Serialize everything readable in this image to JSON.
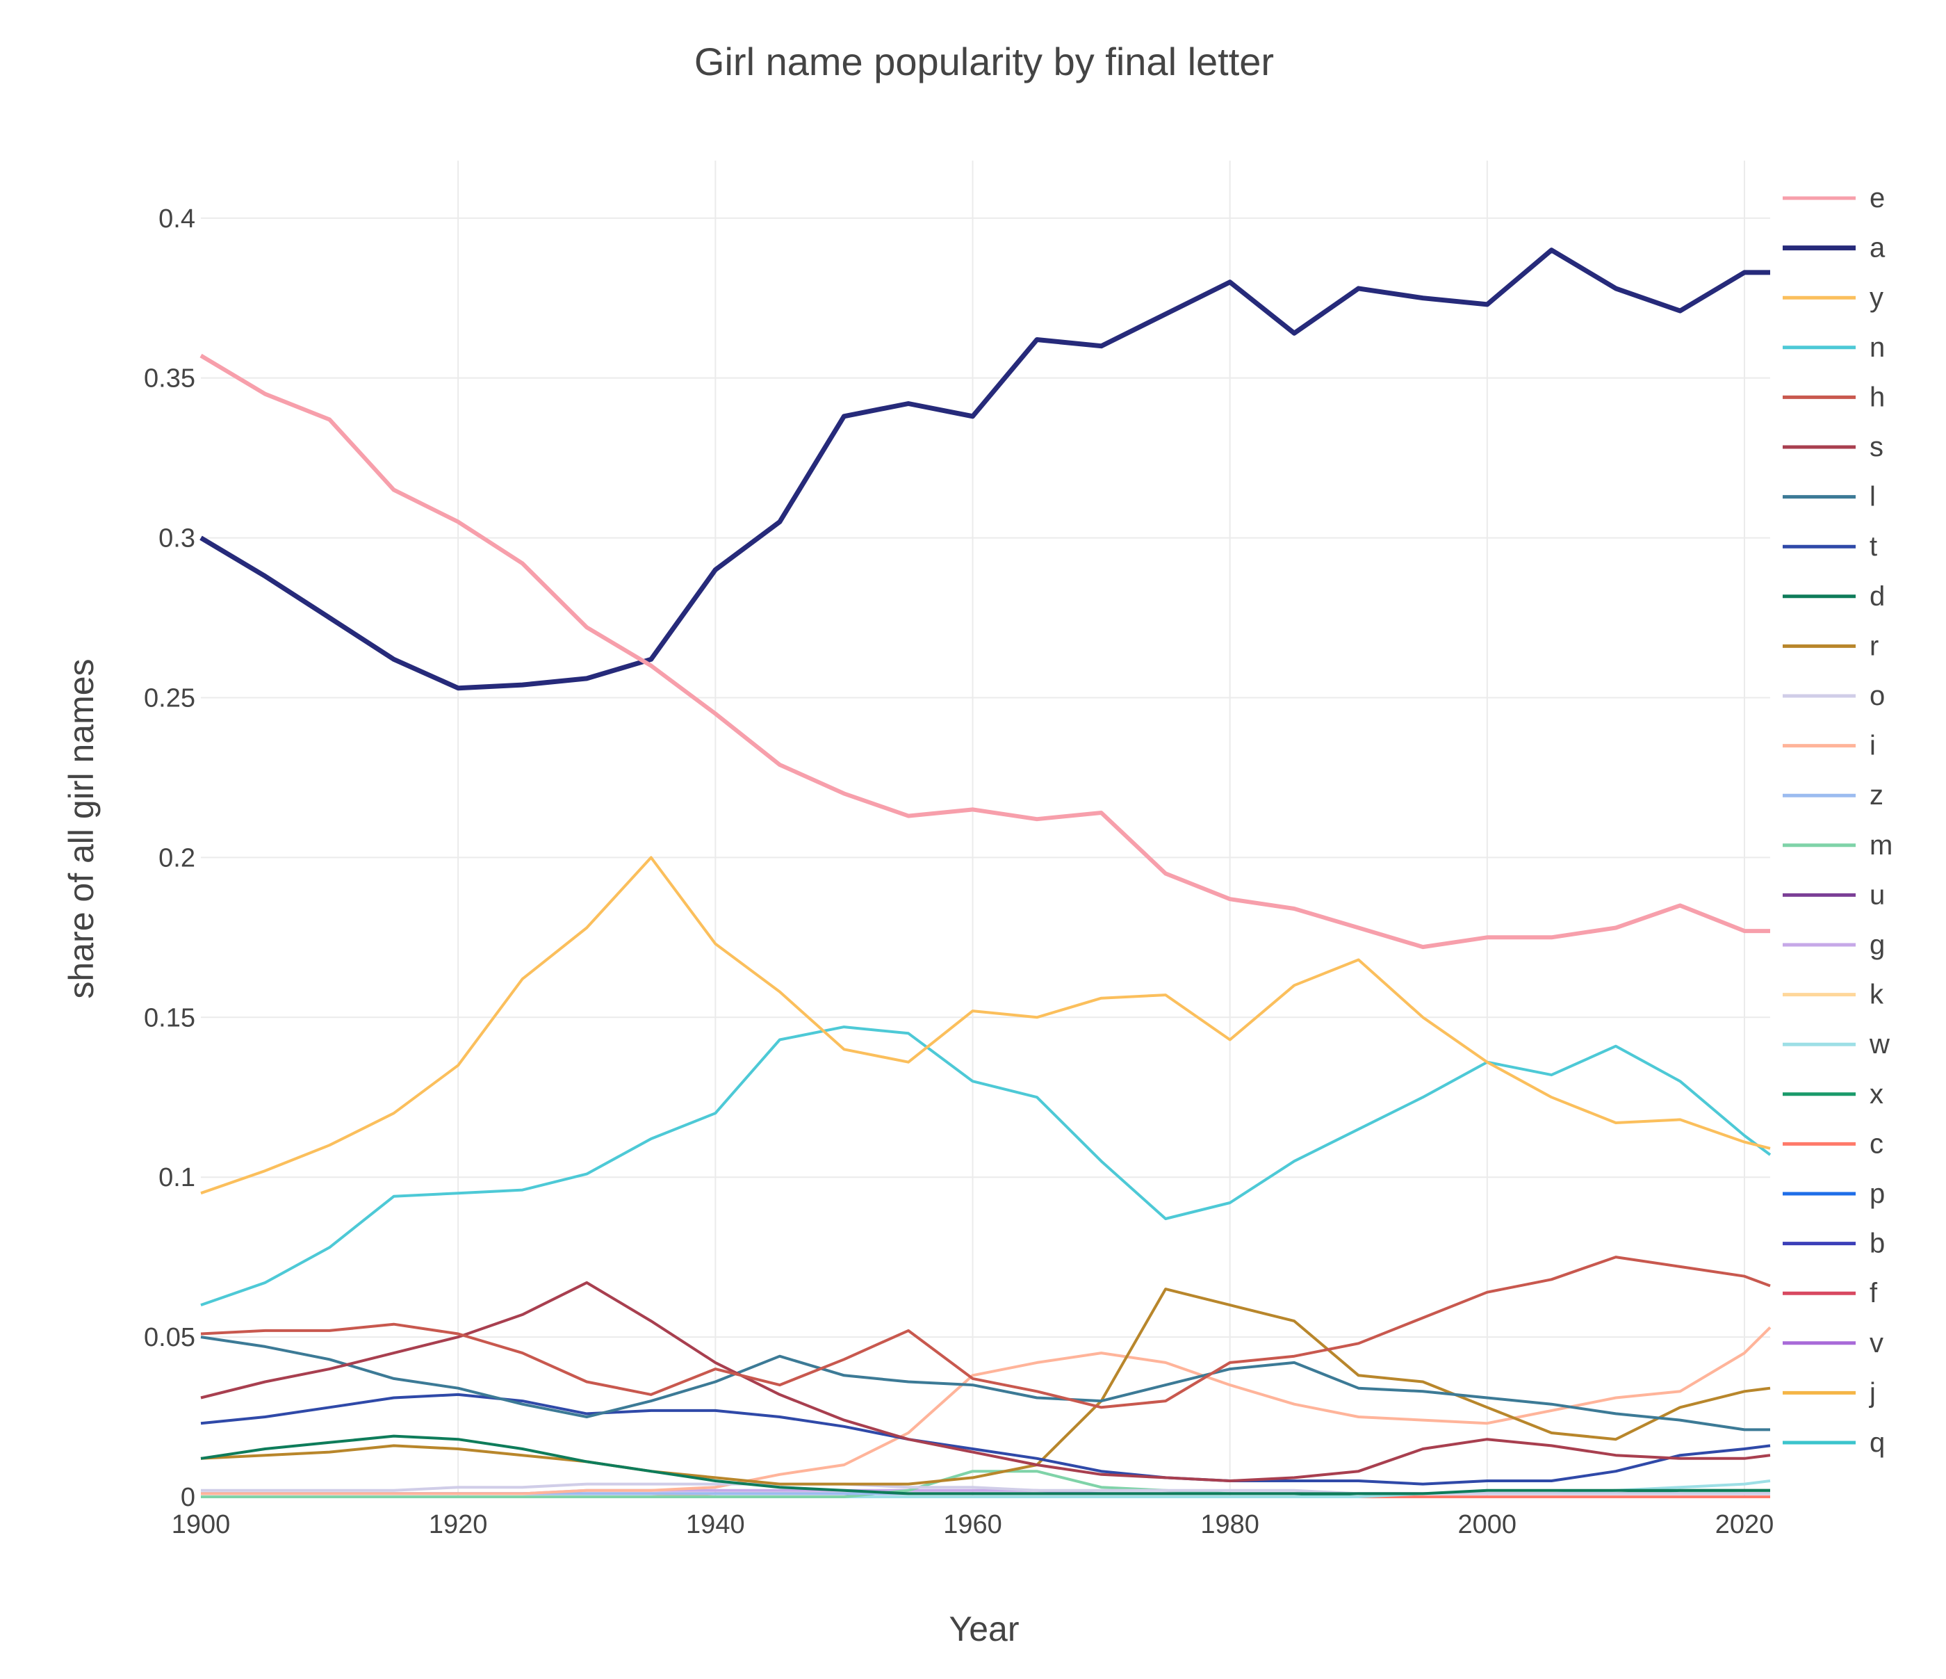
{
  "chart_data": {
    "type": "line",
    "title": "Girl name popularity by final letter",
    "xlabel": "Year",
    "ylabel": "share of all girl names",
    "xlim": [
      1900,
      2022
    ],
    "ylim": [
      0,
      0.418
    ],
    "xticks": [
      1900,
      1920,
      1940,
      1960,
      1980,
      2000,
      2020
    ],
    "yticks": [
      0,
      0.05,
      0.1,
      0.15,
      0.2,
      0.25,
      0.3,
      0.35,
      0.4
    ],
    "ytick_labels": [
      "0",
      "0.05",
      "0.1",
      "0.15",
      "0.2",
      "0.25",
      "0.3",
      "0.35",
      "0.4"
    ],
    "grid": true,
    "legend_placement": "right",
    "x": [
      1900,
      1905,
      1910,
      1915,
      1920,
      1925,
      1930,
      1935,
      1940,
      1945,
      1950,
      1955,
      1960,
      1965,
      1970,
      1975,
      1980,
      1985,
      1990,
      1995,
      2000,
      2005,
      2010,
      2015,
      2020,
      2022
    ],
    "series": [
      {
        "name": "e",
        "color": "#f79fab",
        "values": [
          0.357,
          0.345,
          0.337,
          0.315,
          0.305,
          0.292,
          0.272,
          0.26,
          0.245,
          0.229,
          0.22,
          0.213,
          0.215,
          0.212,
          0.214,
          0.195,
          0.187,
          0.184,
          0.178,
          0.172,
          0.175,
          0.175,
          0.178,
          0.185,
          0.177,
          0.177
        ]
      },
      {
        "name": "a",
        "color": "#262a7a",
        "values": [
          0.3,
          0.288,
          0.275,
          0.262,
          0.253,
          0.254,
          0.256,
          0.262,
          0.29,
          0.305,
          0.338,
          0.342,
          0.338,
          0.362,
          0.36,
          0.37,
          0.38,
          0.364,
          0.378,
          0.375,
          0.373,
          0.39,
          0.378,
          0.371,
          0.383,
          0.383
        ]
      },
      {
        "name": "y",
        "color": "#fbbf5c",
        "values": [
          0.095,
          0.102,
          0.11,
          0.12,
          0.135,
          0.162,
          0.178,
          0.2,
          0.173,
          0.158,
          0.14,
          0.136,
          0.152,
          0.15,
          0.156,
          0.157,
          0.143,
          0.16,
          0.168,
          0.15,
          0.136,
          0.125,
          0.117,
          0.118,
          0.111,
          0.109
        ]
      },
      {
        "name": "n",
        "color": "#4dc9d6",
        "values": [
          0.06,
          0.067,
          0.078,
          0.094,
          0.095,
          0.096,
          0.101,
          0.112,
          0.12,
          0.143,
          0.147,
          0.145,
          0.13,
          0.125,
          0.105,
          0.087,
          0.092,
          0.105,
          0.115,
          0.125,
          0.136,
          0.132,
          0.141,
          0.13,
          0.113,
          0.107
        ]
      },
      {
        "name": "h",
        "color": "#c8584e",
        "values": [
          0.051,
          0.052,
          0.052,
          0.054,
          0.051,
          0.045,
          0.036,
          0.032,
          0.04,
          0.035,
          0.043,
          0.052,
          0.037,
          0.033,
          0.028,
          0.03,
          0.042,
          0.044,
          0.048,
          0.056,
          0.064,
          0.068,
          0.075,
          0.072,
          0.069,
          0.066
        ]
      },
      {
        "name": "s",
        "color": "#a83f4f",
        "values": [
          0.031,
          0.036,
          0.04,
          0.045,
          0.05,
          0.057,
          0.067,
          0.055,
          0.042,
          0.032,
          0.024,
          0.018,
          0.014,
          0.01,
          0.007,
          0.006,
          0.005,
          0.006,
          0.008,
          0.015,
          0.018,
          0.016,
          0.013,
          0.012,
          0.012,
          0.013
        ]
      },
      {
        "name": "l",
        "color": "#3c7a96",
        "values": [
          0.05,
          0.047,
          0.043,
          0.037,
          0.034,
          0.029,
          0.025,
          0.03,
          0.036,
          0.044,
          0.038,
          0.036,
          0.035,
          0.031,
          0.03,
          0.035,
          0.04,
          0.042,
          0.034,
          0.033,
          0.031,
          0.029,
          0.026,
          0.024,
          0.021,
          0.021
        ]
      },
      {
        "name": "t",
        "color": "#2f49a8",
        "values": [
          0.023,
          0.025,
          0.028,
          0.031,
          0.032,
          0.03,
          0.026,
          0.027,
          0.027,
          0.025,
          0.022,
          0.018,
          0.015,
          0.012,
          0.008,
          0.006,
          0.005,
          0.005,
          0.005,
          0.004,
          0.005,
          0.005,
          0.008,
          0.013,
          0.015,
          0.016
        ]
      },
      {
        "name": "d",
        "color": "#0e7c5a",
        "values": [
          0.012,
          0.015,
          0.017,
          0.019,
          0.018,
          0.015,
          0.011,
          0.008,
          0.005,
          0.003,
          0.002,
          0.001,
          0.001,
          0.001,
          0.001,
          0.001,
          0.001,
          0.001,
          0.001,
          0.001,
          0.002,
          0.002,
          0.002,
          0.002,
          0.002,
          0.002
        ]
      },
      {
        "name": "r",
        "color": "#b8862b",
        "values": [
          0.012,
          0.013,
          0.014,
          0.016,
          0.015,
          0.013,
          0.011,
          0.008,
          0.006,
          0.004,
          0.004,
          0.004,
          0.006,
          0.01,
          0.03,
          0.065,
          0.06,
          0.055,
          0.038,
          0.036,
          0.028,
          0.02,
          0.018,
          0.028,
          0.033,
          0.034
        ]
      },
      {
        "name": "o",
        "color": "#d0cde8",
        "values": [
          0.002,
          0.002,
          0.002,
          0.002,
          0.003,
          0.003,
          0.004,
          0.004,
          0.004,
          0.004,
          0.004,
          0.003,
          0.003,
          0.002,
          0.002,
          0.002,
          0.002,
          0.002,
          0.001,
          0.001,
          0.001,
          0.001,
          0.001,
          0.001,
          0.001,
          0.001
        ]
      },
      {
        "name": "i",
        "color": "#ffb49a",
        "values": [
          0.001,
          0.001,
          0.001,
          0.001,
          0.001,
          0.001,
          0.002,
          0.002,
          0.003,
          0.007,
          0.01,
          0.02,
          0.038,
          0.042,
          0.045,
          0.042,
          0.035,
          0.029,
          0.025,
          0.024,
          0.023,
          0.027,
          0.031,
          0.033,
          0.045,
          0.053
        ]
      },
      {
        "name": "z",
        "color": "#9bbcf0",
        "values": [
          0.001,
          0.001,
          0.001,
          0.001,
          0.001,
          0.001,
          0.001,
          0.001,
          0.001,
          0.001,
          0.001,
          0.001,
          0.001,
          0.001,
          0.001,
          0.001,
          0.001,
          0.001,
          0.001,
          0.001,
          0.001,
          0.001,
          0.001,
          0.001,
          0.001,
          0.001
        ]
      },
      {
        "name": "m",
        "color": "#7fd3a8",
        "values": [
          0.0,
          0.0,
          0.0,
          0.0,
          0.0,
          0.0,
          0.0,
          0.0,
          0.0,
          0.0,
          0.0,
          0.002,
          0.008,
          0.008,
          0.003,
          0.002,
          0.001,
          0.001,
          0.001,
          0.001,
          0.001,
          0.001,
          0.001,
          0.001,
          0.002,
          0.002
        ]
      },
      {
        "name": "u",
        "color": "#7b3f96",
        "values": [
          0.001,
          0.001,
          0.001,
          0.001,
          0.001,
          0.001,
          0.001,
          0.001,
          0.001,
          0.001,
          0.001,
          0.001,
          0.001,
          0.001,
          0.001,
          0.001,
          0.001,
          0.001,
          0.001,
          0.001,
          0.001,
          0.001,
          0.001,
          0.001,
          0.001,
          0.001
        ]
      },
      {
        "name": "g",
        "color": "#c6a8e8",
        "values": [
          0.001,
          0.001,
          0.001,
          0.001,
          0.001,
          0.001,
          0.002,
          0.002,
          0.002,
          0.002,
          0.002,
          0.002,
          0.002,
          0.002,
          0.001,
          0.001,
          0.001,
          0.001,
          0.001,
          0.001,
          0.001,
          0.001,
          0.001,
          0.001,
          0.001,
          0.001
        ]
      },
      {
        "name": "k",
        "color": "#ffd79a",
        "values": [
          0.0,
          0.0,
          0.0,
          0.0,
          0.0,
          0.0,
          0.0,
          0.0,
          0.001,
          0.001,
          0.001,
          0.001,
          0.001,
          0.001,
          0.001,
          0.001,
          0.001,
          0.001,
          0.001,
          0.001,
          0.001,
          0.001,
          0.001,
          0.001,
          0.001,
          0.001
        ]
      },
      {
        "name": "w",
        "color": "#9ddfe6",
        "values": [
          0.0,
          0.0,
          0.0,
          0.0,
          0.0,
          0.0,
          0.0,
          0.0,
          0.0,
          0.0,
          0.0,
          0.0,
          0.0,
          0.0,
          0.0,
          0.0,
          0.0,
          0.0,
          0.0,
          0.001,
          0.001,
          0.001,
          0.002,
          0.003,
          0.004,
          0.005
        ]
      },
      {
        "name": "x",
        "color": "#1a9a6a",
        "values": [
          0.0,
          0.0,
          0.0,
          0.0,
          0.0,
          0.0,
          0.0,
          0.0,
          0.0,
          0.0,
          0.0,
          0.0,
          0.0,
          0.0,
          0.0,
          0.0,
          0.0,
          0.0,
          0.001,
          0.001,
          0.001,
          0.001,
          0.001,
          0.002,
          0.002,
          0.002
        ]
      },
      {
        "name": "c",
        "color": "#ff7a6a",
        "values": [
          0.0,
          0.0,
          0.0,
          0.0,
          0.0,
          0.0,
          0.0,
          0.0,
          0.0,
          0.0,
          0.0,
          0.0,
          0.0,
          0.0,
          0.0,
          0.0,
          0.0,
          0.0,
          0.0,
          0.0,
          0.0,
          0.0,
          0.0,
          0.0,
          0.0,
          0.0
        ]
      },
      {
        "name": "p",
        "color": "#1f6ee8",
        "values": [
          0.0,
          0.0,
          0.0,
          0.0,
          0.0,
          0.0,
          0.0,
          0.0,
          0.0,
          0.0,
          0.0,
          0.0,
          0.0,
          0.0,
          0.0,
          0.0,
          0.0,
          0.0,
          0.0,
          0.0,
          0.0,
          0.0,
          0.0,
          0.0,
          0.0,
          0.0
        ]
      },
      {
        "name": "b",
        "color": "#3b3fb8",
        "values": [
          0.0,
          0.0,
          0.0,
          0.0,
          0.0,
          0.0,
          0.0,
          0.0,
          0.0,
          0.0,
          0.0,
          0.0,
          0.0,
          0.0,
          0.0,
          0.0,
          0.0,
          0.0,
          0.0,
          0.0,
          0.0,
          0.0,
          0.0,
          0.0,
          0.0,
          0.0
        ]
      },
      {
        "name": "f",
        "color": "#d84860",
        "values": [
          0.0,
          0.0,
          0.0,
          0.0,
          0.0,
          0.0,
          0.0,
          0.0,
          0.0,
          0.0,
          0.0,
          0.0,
          0.0,
          0.0,
          0.0,
          0.0,
          0.0,
          0.0,
          0.0,
          0.0,
          0.0,
          0.0,
          0.0,
          0.0,
          0.0,
          0.0
        ]
      },
      {
        "name": "v",
        "color": "#a86ad8",
        "values": [
          0.0,
          0.0,
          0.0,
          0.0,
          0.0,
          0.0,
          0.0,
          0.0,
          0.0,
          0.0,
          0.0,
          0.0,
          0.0,
          0.0,
          0.0,
          0.0,
          0.0,
          0.0,
          0.0,
          0.0,
          0.0,
          0.0,
          0.0,
          0.0,
          0.0,
          0.0
        ]
      },
      {
        "name": "j",
        "color": "#f5b546",
        "values": [
          0.0,
          0.0,
          0.0,
          0.0,
          0.0,
          0.0,
          0.0,
          0.0,
          0.0,
          0.0,
          0.0,
          0.0,
          0.0,
          0.0,
          0.0,
          0.0,
          0.0,
          0.0,
          0.0,
          0.0,
          0.0,
          0.0,
          0.0,
          0.0,
          0.0,
          0.0
        ]
      },
      {
        "name": "q",
        "color": "#3cc4cc",
        "values": [
          0.0,
          0.0,
          0.0,
          0.0,
          0.0,
          0.0,
          0.0,
          0.0,
          0.0,
          0.0,
          0.0,
          0.0,
          0.0,
          0.0,
          0.0,
          0.0,
          0.0,
          0.0,
          0.0,
          0.0,
          0.0,
          0.0,
          0.0,
          0.0,
          0.0,
          0.0
        ]
      }
    ]
  }
}
